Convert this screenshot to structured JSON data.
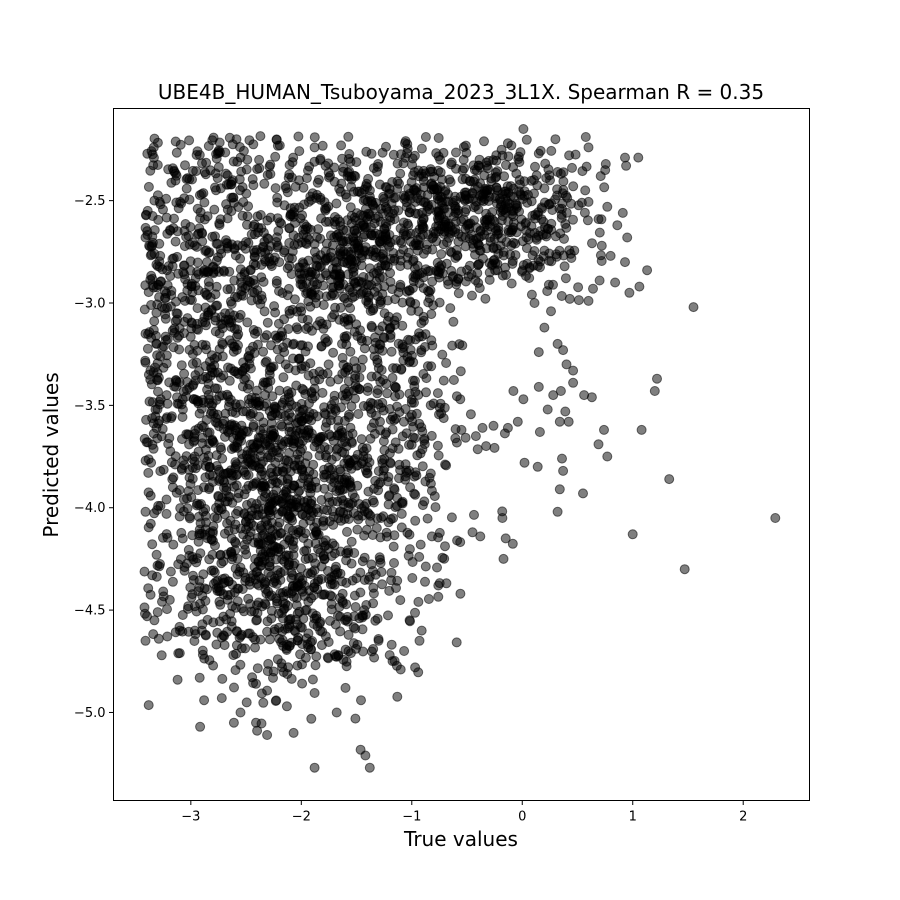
{
  "chart_data": {
    "type": "scatter",
    "title": "UBE4B_HUMAN_Tsuboyama_2023_3L1X. Spearman R = 0.35",
    "xlabel": "True values",
    "ylabel": "Predicted values",
    "xlim": [
      -3.7,
      2.6
    ],
    "ylim": [
      -5.43,
      -2.05
    ],
    "xticks": [
      -3,
      -2,
      -1,
      0,
      1,
      2
    ],
    "xtick_labels": [
      "−3",
      "−2",
      "−1",
      "0",
      "1",
      "2"
    ],
    "yticks": [
      -5.0,
      -4.5,
      -4.0,
      -3.5,
      -3.0,
      -2.5
    ],
    "ytick_labels": [
      "−5.0",
      "−4.5",
      "−4.0",
      "−3.5",
      "−3.0",
      "−2.5"
    ],
    "grid": false,
    "marker_color": "#000000",
    "marker_alpha": 0.5,
    "points": [
      [
        -3.39,
        -2.55
      ],
      [
        -3.41,
        -2.68
      ],
      [
        -3.33,
        -2.5
      ],
      [
        -3.3,
        -2.82
      ],
      [
        -3.36,
        -3.01
      ],
      [
        -3.41,
        -3.15
      ],
      [
        -3.38,
        -3.35
      ],
      [
        -3.32,
        -3.52
      ],
      [
        -3.4,
        -3.68
      ],
      [
        -3.36,
        -3.78
      ],
      [
        -3.41,
        -4.02
      ],
      [
        -3.31,
        -4.23
      ],
      [
        -3.35,
        -4.33
      ],
      [
        -3.33,
        -4.55
      ],
      [
        -3.41,
        -4.65
      ],
      [
        -3.3,
        -4.51
      ],
      [
        -3.29,
        -4.64
      ],
      [
        -3.22,
        -3.96
      ],
      [
        -3.19,
        -4.45
      ],
      [
        -3.1,
        -4.71
      ],
      [
        -3.12,
        -4.84
      ],
      [
        -2.92,
        -4.83
      ],
      [
        -2.88,
        -4.94
      ],
      [
        -2.72,
        -4.93
      ],
      [
        -2.61,
        -5.05
      ],
      [
        -2.55,
        -5.0
      ],
      [
        -2.41,
        -5.05
      ],
      [
        -2.31,
        -5.11
      ],
      [
        -2.07,
        -5.1
      ],
      [
        -1.88,
        -5.27
      ],
      [
        -1.68,
        -5.0
      ],
      [
        -1.51,
        -5.03
      ],
      [
        -1.42,
        -5.21
      ],
      [
        -1.38,
        -5.27
      ],
      [
        -1.46,
        -4.94
      ],
      [
        -1.6,
        -4.88
      ],
      [
        -2.13,
        -4.97
      ],
      [
        -2.25,
        -4.8
      ],
      [
        -2.41,
        -4.86
      ],
      [
        -2.2,
        -4.64
      ],
      [
        -2.54,
        -4.62
      ],
      [
        -2.9,
        -4.6
      ],
      [
        -2.55,
        -2.29
      ],
      [
        -2.28,
        -2.37
      ],
      [
        -1.78,
        -2.33
      ],
      [
        -1.88,
        -2.24
      ],
      [
        -2.02,
        -2.4
      ],
      [
        -2.62,
        -2.4
      ],
      [
        -3.03,
        -2.39
      ],
      [
        -3.12,
        -2.65
      ],
      [
        -3.2,
        -2.82
      ],
      [
        -3.13,
        -3.05
      ],
      [
        -0.91,
        -2.37
      ],
      [
        -0.53,
        -2.3
      ],
      [
        -0.32,
        -2.33
      ],
      [
        -0.18,
        -2.28
      ],
      [
        -0.13,
        -2.22
      ],
      [
        0.01,
        -2.15
      ],
      [
        0.15,
        -2.27
      ],
      [
        0.32,
        -2.36
      ],
      [
        0.45,
        -2.34
      ],
      [
        0.6,
        -2.24
      ],
      [
        0.71,
        -2.38
      ],
      [
        0.57,
        -2.45
      ],
      [
        0.77,
        -2.53
      ],
      [
        0.69,
        -2.59
      ],
      [
        0.93,
        -2.29
      ],
      [
        0.94,
        -2.33
      ],
      [
        1.05,
        -2.29
      ],
      [
        0.91,
        -2.56
      ],
      [
        0.86,
        -2.62
      ],
      [
        0.95,
        -2.68
      ],
      [
        0.72,
        -2.72
      ],
      [
        0.8,
        -2.77
      ],
      [
        0.93,
        -2.8
      ],
      [
        1.13,
        -2.84
      ],
      [
        0.84,
        -2.9
      ],
      [
        0.7,
        -2.89
      ],
      [
        0.64,
        -2.93
      ],
      [
        0.97,
        -2.95
      ],
      [
        1.06,
        -2.92
      ],
      [
        0.6,
        -2.99
      ],
      [
        0.43,
        -2.98
      ],
      [
        0.26,
        -3.04
      ],
      [
        0.2,
        -3.12
      ],
      [
        1.55,
        -3.02
      ],
      [
        0.37,
        -3.23
      ],
      [
        0.46,
        -3.33
      ],
      [
        0.32,
        -3.2
      ],
      [
        0.15,
        -3.24
      ],
      [
        0.4,
        -3.3
      ],
      [
        0.46,
        -3.39
      ],
      [
        1.22,
        -3.37
      ],
      [
        1.2,
        -3.43
      ],
      [
        0.63,
        -3.46
      ],
      [
        0.56,
        -3.45
      ],
      [
        0.35,
        -3.43
      ],
      [
        0.28,
        -3.45
      ],
      [
        0.15,
        -3.41
      ],
      [
        -0.08,
        -3.43
      ],
      [
        0.01,
        -3.47
      ],
      [
        0.23,
        -3.52
      ],
      [
        0.39,
        -3.53
      ],
      [
        0.42,
        -3.58
      ],
      [
        0.34,
        -3.58
      ],
      [
        -0.04,
        -3.58
      ],
      [
        0.16,
        -3.63
      ],
      [
        -0.13,
        -3.61
      ],
      [
        -0.26,
        -3.6
      ],
      [
        -0.36,
        -3.61
      ],
      [
        -0.42,
        -3.65
      ],
      [
        -0.55,
        -3.62
      ],
      [
        0.74,
        -3.62
      ],
      [
        0.69,
        -3.69
      ],
      [
        0.77,
        -3.75
      ],
      [
        1.08,
        -3.62
      ],
      [
        0.36,
        -3.76
      ],
      [
        0.37,
        -3.82
      ],
      [
        0.02,
        -3.78
      ],
      [
        0.14,
        -3.8
      ],
      [
        0.34,
        -3.91
      ],
      [
        0.55,
        -3.93
      ],
      [
        1.33,
        -3.86
      ],
      [
        0.32,
        -4.02
      ],
      [
        -0.18,
        -4.05
      ],
      [
        -0.15,
        -4.15
      ],
      [
        -0.17,
        -4.25
      ],
      [
        -0.38,
        -4.14
      ],
      [
        -0.45,
        -4.12
      ],
      [
        -0.59,
        -4.16
      ],
      [
        1.0,
        -4.13
      ],
      [
        1.47,
        -4.3
      ],
      [
        2.29,
        -4.05
      ],
      [
        -0.56,
        -4.42
      ],
      [
        -0.76,
        -4.38
      ],
      [
        -0.94,
        -4.46
      ],
      [
        -1.02,
        -4.55
      ],
      [
        -0.91,
        -4.6
      ],
      [
        -0.93,
        -4.65
      ],
      [
        -0.97,
        -4.78
      ],
      [
        -1.07,
        -4.7
      ],
      [
        -1.1,
        -4.79
      ],
      [
        -1.2,
        -4.72
      ],
      [
        -1.3,
        -4.65
      ]
    ]
  }
}
